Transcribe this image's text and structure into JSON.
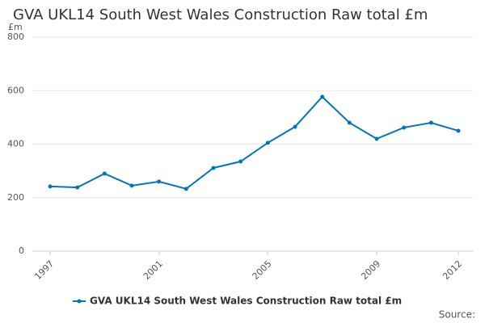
{
  "chart_data": {
    "type": "line",
    "title": "GVA UKL14 South West Wales Construction Raw total £m",
    "y_label": "£m",
    "source": "Source:",
    "x": [
      1997,
      1998,
      1999,
      2000,
      2001,
      2002,
      2003,
      2004,
      2005,
      2006,
      2007,
      2008,
      2009,
      2010,
      2011,
      2012
    ],
    "series": [
      {
        "name": "GVA UKL14 South West Wales Construction Raw total £m",
        "color": "#0077bb",
        "values": [
          242,
          238,
          290,
          245,
          260,
          233,
          311,
          335,
          405,
          465,
          577,
          480,
          420,
          462,
          480,
          450
        ]
      }
    ],
    "xlim": [
      1997,
      2012
    ],
    "xticks": [
      1997,
      2001,
      2005,
      2009,
      2012
    ],
    "ylim": [
      0,
      800
    ],
    "yticks": [
      0,
      200,
      400,
      600,
      800
    ],
    "grid": true,
    "legend": "bottom"
  }
}
